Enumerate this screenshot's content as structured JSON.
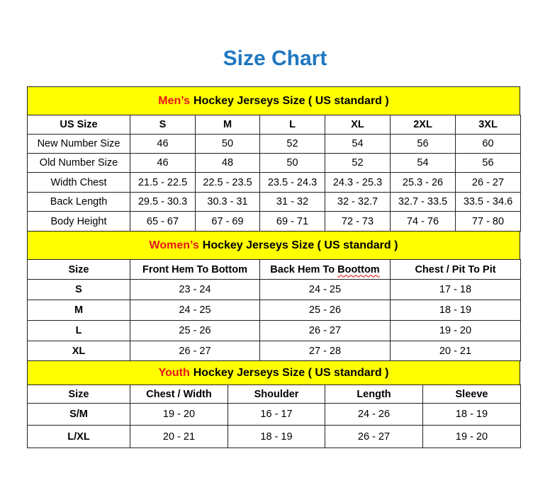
{
  "title": "Size Chart",
  "colors": {
    "title": "#1f77c0",
    "band": "#ffff00",
    "accent": "#e8141b"
  },
  "sections": [
    {
      "id": "men",
      "band_highlight": "Men’s",
      "band_rest": "Hockey Jerseys Size ( US standard )",
      "headers": [
        "US Size",
        "S",
        "M",
        "L",
        "XL",
        "2XL",
        "3XL"
      ],
      "rows": [
        [
          "New Number Size",
          "46",
          "50",
          "52",
          "54",
          "56",
          "60"
        ],
        [
          "Old Number Size",
          "46",
          "48",
          "50",
          "52",
          "54",
          "56"
        ],
        [
          "Width Chest",
          "21.5 - 22.5",
          "22.5 - 23.5",
          "23.5 - 24.3",
          "24.3 - 25.3",
          "25.3 - 26",
          "26 - 27"
        ],
        [
          "Back Length",
          "29.5 - 30.3",
          "30.3 - 31",
          "31 - 32",
          "32 - 32.7",
          "32.7 - 33.5",
          "33.5 - 34.6"
        ],
        [
          "Body Height",
          "65 - 67",
          "67 - 69",
          "69 - 71",
          "72 - 73",
          "74 - 76",
          "77 - 80"
        ]
      ]
    },
    {
      "id": "women",
      "band_highlight": "Women’s",
      "band_rest": "Hockey Jerseys Size ( US standard )",
      "headers": [
        "Size",
        "Front Hem To Bottom",
        "Back Hem To Boottom",
        "Chest / Pit To Pit"
      ],
      "rows": [
        [
          "S",
          "23 - 24",
          "24 - 25",
          "17 - 18"
        ],
        [
          "M",
          "24 - 25",
          "25 - 26",
          "18 - 19"
        ],
        [
          "L",
          "25 - 26",
          "26 - 27",
          "19 - 20"
        ],
        [
          "XL",
          "26 - 27",
          "27 - 28",
          "20 - 21"
        ]
      ]
    },
    {
      "id": "youth",
      "band_highlight": "Youth",
      "band_rest": "Hockey Jerseys Size ( US standard )",
      "headers": [
        "Size",
        "Chest / Width",
        "Shoulder",
        "Length",
        "Sleeve"
      ],
      "rows": [
        [
          "S/M",
          "19 - 20",
          "16 - 17",
          "24 - 26",
          "18 - 19"
        ],
        [
          "L/XL",
          "20 - 21",
          "18 - 19",
          "26 - 27",
          "19 - 20"
        ]
      ]
    }
  ]
}
